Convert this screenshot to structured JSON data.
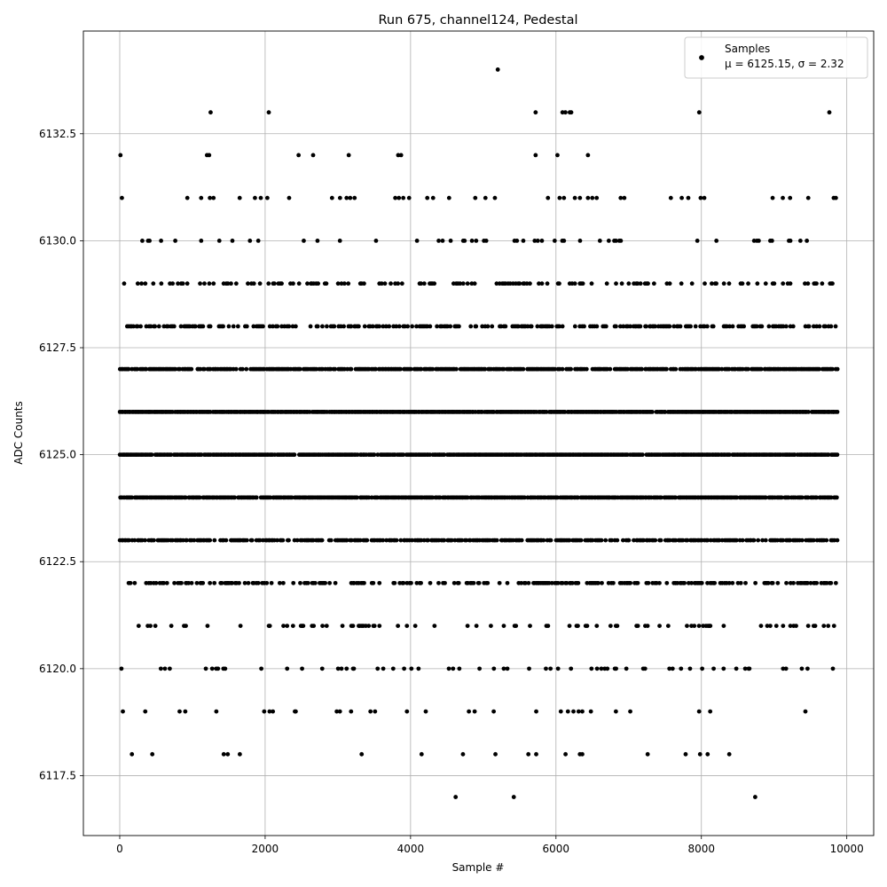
{
  "chart_data": {
    "type": "scatter",
    "title": "Run 675, channel124, Pedestal",
    "xlabel": "Sample #",
    "ylabel": "ADC Counts",
    "xlim": [
      -500,
      10370
    ],
    "ylim": [
      6116.1,
      6134.9
    ],
    "xticks": [
      0,
      2000,
      4000,
      6000,
      8000,
      10000
    ],
    "xtick_labels": [
      "0",
      "2000",
      "4000",
      "6000",
      "8000",
      "10000"
    ],
    "yticks": [
      6117.5,
      6120.0,
      6122.5,
      6125.0,
      6127.5,
      6130.0,
      6132.5
    ],
    "ytick_labels": [
      "6117.5",
      "6120.0",
      "6122.5",
      "6125.0",
      "6127.5",
      "6130.0",
      "6132.5"
    ],
    "grid": true,
    "legend": {
      "position": "top-right",
      "label": "Samples",
      "sublabel": "μ = 6125.15, σ = 2.32"
    },
    "marker_color": "#000000",
    "n_samples_approx": 9870,
    "series": [
      {
        "name": "Samples",
        "points": [
          [
            5200,
            6134
          ],
          [
            1250,
            6133
          ],
          [
            2050,
            6133
          ],
          [
            5720,
            6133
          ],
          [
            6090,
            6133
          ],
          [
            6130,
            6133
          ],
          [
            6190,
            6133
          ],
          [
            6210,
            6133
          ],
          [
            7970,
            6133
          ],
          [
            9760,
            6133
          ],
          [
            10,
            6132
          ],
          [
            1200,
            6132
          ],
          [
            1230,
            6132
          ],
          [
            2460,
            6132
          ],
          [
            2660,
            6132
          ],
          [
            3150,
            6132
          ],
          [
            3830,
            6132
          ],
          [
            3870,
            6132
          ],
          [
            5720,
            6132
          ],
          [
            6020,
            6132
          ],
          [
            6440,
            6132
          ],
          [
            30,
            6131
          ],
          [
            930,
            6131
          ],
          [
            1120,
            6131
          ],
          [
            1240,
            6131
          ],
          [
            1290,
            6131
          ],
          [
            1650,
            6131
          ],
          [
            1860,
            6131
          ],
          [
            1940,
            6131
          ],
          [
            2030,
            6131
          ],
          [
            2330,
            6131
          ],
          [
            2920,
            6131
          ],
          [
            3030,
            6131
          ],
          [
            3120,
            6131
          ],
          [
            3170,
            6131
          ],
          [
            3230,
            6131
          ],
          [
            3790,
            6131
          ],
          [
            3840,
            6131
          ],
          [
            3900,
            6131
          ],
          [
            3980,
            6131
          ],
          [
            4230,
            6131
          ],
          [
            4310,
            6131
          ],
          [
            4530,
            6131
          ],
          [
            4890,
            6131
          ],
          [
            5030,
            6131
          ],
          [
            5160,
            6131
          ],
          [
            5890,
            6131
          ],
          [
            6050,
            6131
          ],
          [
            6110,
            6131
          ],
          [
            6260,
            6131
          ],
          [
            6330,
            6131
          ],
          [
            6440,
            6131
          ],
          [
            6500,
            6131
          ],
          [
            6560,
            6131
          ],
          [
            6890,
            6131
          ],
          [
            6940,
            6131
          ],
          [
            7580,
            6131
          ],
          [
            7730,
            6131
          ],
          [
            7820,
            6131
          ],
          [
            7990,
            6131
          ],
          [
            8040,
            6131
          ],
          [
            8980,
            6131
          ],
          [
            9120,
            6131
          ],
          [
            9220,
            6131
          ],
          [
            9470,
            6131
          ],
          [
            9820,
            6131
          ],
          [
            9850,
            6131
          ],
          [
            4620,
            6117
          ],
          [
            5420,
            6117
          ],
          [
            8740,
            6117
          ]
        ],
        "dense_bands": [
          {
            "y": 6130,
            "density": 0.09,
            "x_range": [
              0,
              9860
            ]
          },
          {
            "y": 6129,
            "density": 0.26,
            "x_range": [
              0,
              9860
            ]
          },
          {
            "y": 6128,
            "density": 0.48,
            "x_range": [
              0,
              9860
            ]
          },
          {
            "y": 6127,
            "density": 0.82,
            "x_range": [
              0,
              9860
            ]
          },
          {
            "y": 6126,
            "density": 0.95,
            "x_range": [
              0,
              9860
            ]
          },
          {
            "y": 6125,
            "density": 0.95,
            "x_range": [
              0,
              9860
            ]
          },
          {
            "y": 6124,
            "density": 0.92,
            "x_range": [
              0,
              9860
            ]
          },
          {
            "y": 6123,
            "density": 0.72,
            "x_range": [
              0,
              9860
            ]
          },
          {
            "y": 6122,
            "density": 0.42,
            "x_range": [
              0,
              9860
            ]
          },
          {
            "y": 6121,
            "density": 0.18,
            "x_range": [
              0,
              9860
            ]
          },
          {
            "y": 6120,
            "density": 0.13,
            "x_range": [
              0,
              9860
            ]
          },
          {
            "y": 6119,
            "density": 0.06,
            "x_range": [
              0,
              9860
            ]
          },
          {
            "y": 6118,
            "density": 0.025,
            "x_range": [
              0,
              9860
            ]
          }
        ]
      }
    ]
  }
}
